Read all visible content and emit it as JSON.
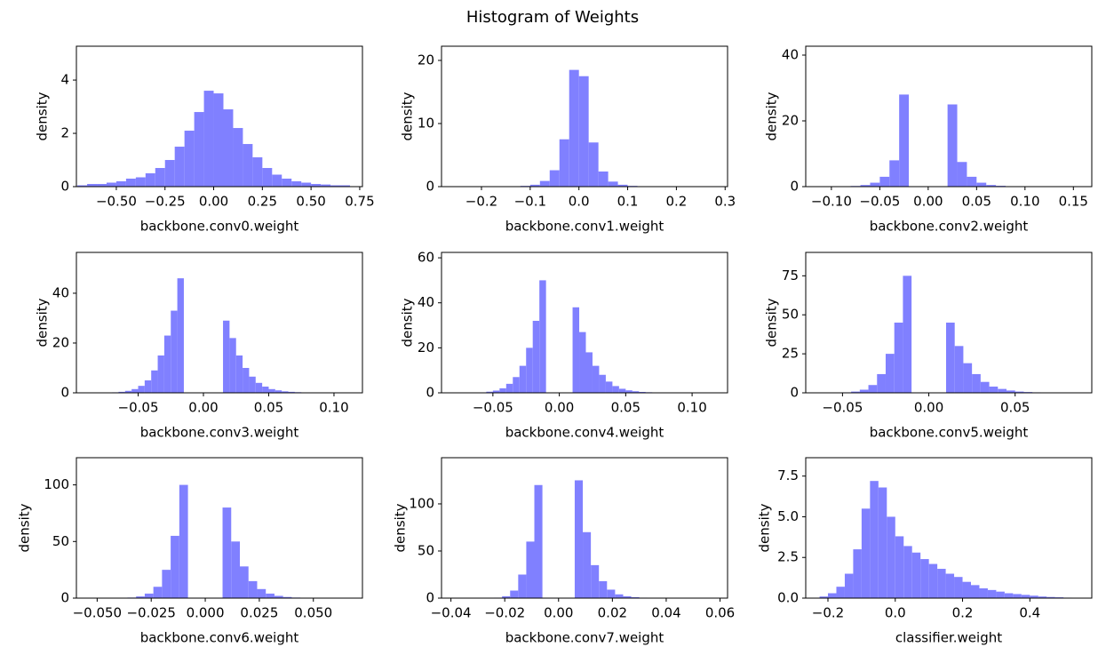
{
  "title": "Histogram of Weights",
  "chart_data": [
    {
      "type": "histogram",
      "xlabel": "backbone.conv0.weight",
      "ylabel": "density",
      "color": "#8080ff",
      "bins": [
        -0.7,
        -0.65,
        -0.6,
        -0.55,
        -0.5,
        -0.45,
        -0.4,
        -0.35,
        -0.3,
        -0.25,
        -0.2,
        -0.15,
        -0.1,
        -0.05,
        0.0,
        0.05,
        0.1,
        0.15,
        0.2,
        0.25,
        0.3,
        0.35,
        0.4,
        0.45,
        0.5,
        0.55,
        0.6,
        0.65,
        0.7
      ],
      "values": [
        0.05,
        0.1,
        0.1,
        0.15,
        0.2,
        0.3,
        0.35,
        0.5,
        0.7,
        1.0,
        1.5,
        2.1,
        2.8,
        3.6,
        3.5,
        2.9,
        2.2,
        1.6,
        1.1,
        0.7,
        0.45,
        0.3,
        0.2,
        0.15,
        0.1,
        0.08,
        0.05,
        0.05
      ],
      "xlim": [
        -0.705,
        0.764
      ],
      "ylim": [
        0,
        5.27
      ],
      "xticks": [
        {
          "value": -0.5,
          "label": "−0.50"
        },
        {
          "value": -0.25,
          "label": "−0.25"
        },
        {
          "value": 0,
          "label": "0.00"
        },
        0.25,
        {
          "value": 0.5,
          "label": "0.50"
        },
        0.75
      ],
      "yticks": [
        0,
        2,
        4
      ]
    },
    {
      "type": "histogram",
      "xlabel": "backbone.conv1.weight",
      "ylabel": "density",
      "color": "#8080ff",
      "bins": [
        -0.26,
        -0.24,
        -0.22,
        -0.2,
        -0.18,
        -0.16,
        -0.14,
        -0.12,
        -0.1,
        -0.08,
        -0.06,
        -0.04,
        -0.02,
        0.0,
        0.02,
        0.04,
        0.06,
        0.08,
        0.1,
        0.12,
        0.14,
        0.16,
        0.18,
        0.2,
        0.22,
        0.24,
        0.26,
        0.28
      ],
      "values": [
        0,
        0,
        0.01,
        0.01,
        0.02,
        0.03,
        0.06,
        0.12,
        0.3,
        0.9,
        2.6,
        7.5,
        18.5,
        17.5,
        7.0,
        2.4,
        0.8,
        0.3,
        0.12,
        0.06,
        0.03,
        0.02,
        0.01,
        0.01,
        0,
        0,
        0
      ],
      "xlim": [
        -0.282,
        0.305
      ],
      "ylim": [
        0,
        22.25
      ],
      "xticks": [
        {
          "value": -0.2,
          "label": "−0.2"
        },
        {
          "value": -0.1,
          "label": "−0.1"
        },
        {
          "value": 0,
          "label": "0.0"
        },
        0.1,
        0.2,
        0.3
      ],
      "yticks": [
        0,
        10,
        20
      ]
    },
    {
      "type": "histogram",
      "xlabel": "backbone.conv2.weight",
      "ylabel": "density",
      "color": "#8080ff",
      "bins": [
        -0.12,
        -0.11,
        -0.1,
        -0.09,
        -0.08,
        -0.07,
        -0.06,
        -0.05,
        -0.04,
        -0.03,
        -0.02,
        -0.01,
        0.0,
        0.01,
        0.02,
        0.03,
        0.04,
        0.05,
        0.06,
        0.07,
        0.08,
        0.09,
        0.1,
        0.11,
        0.12,
        0.13,
        0.14,
        0.15,
        0.16
      ],
      "values": [
        0,
        0,
        0.05,
        0.1,
        0.2,
        0.5,
        1.2,
        3,
        8,
        28,
        0,
        0,
        0,
        0,
        25,
        7.5,
        3,
        1.2,
        0.5,
        0.25,
        0.1,
        0.05,
        0.03,
        0.02,
        0.01,
        0,
        0,
        0
      ],
      "xlim": [
        -0.1265,
        0.169
      ],
      "ylim": [
        0,
        42.7
      ],
      "xticks": [
        {
          "value": -0.1,
          "label": "−0.10"
        },
        {
          "value": -0.05,
          "label": "−0.05"
        },
        {
          "value": 0,
          "label": "0.00"
        },
        0.05,
        {
          "value": 0.1,
          "label": "0.10"
        },
        0.15
      ],
      "yticks": [
        0,
        20,
        40
      ]
    },
    {
      "type": "histogram",
      "xlabel": "backbone.conv3.weight",
      "ylabel": "density",
      "color": "#8080ff",
      "bins": [
        -0.09,
        -0.085,
        -0.08,
        -0.075,
        -0.07,
        -0.065,
        -0.06,
        -0.055,
        -0.05,
        -0.045,
        -0.04,
        -0.035,
        -0.03,
        -0.025,
        -0.02,
        -0.015,
        -0.01,
        -0.005,
        0.0,
        0.005,
        0.01,
        0.015,
        0.02,
        0.025,
        0.03,
        0.035,
        0.04,
        0.045,
        0.05,
        0.055,
        0.06,
        0.065,
        0.07,
        0.075,
        0.08,
        0.085,
        0.09,
        0.095,
        0.1,
        0.105,
        0.11
      ],
      "values": [
        0,
        0.02,
        0.05,
        0.1,
        0.2,
        0.4,
        0.8,
        1.5,
        2.8,
        5,
        9,
        15,
        23,
        33,
        46,
        0,
        0,
        0,
        0,
        0,
        0,
        29,
        22,
        15,
        10,
        6.5,
        4,
        2.5,
        1.5,
        1,
        0.6,
        0.4,
        0.25,
        0.15,
        0.1,
        0.06,
        0.04,
        0.02,
        0.01,
        0
      ],
      "xlim": [
        -0.0973,
        0.1218
      ],
      "ylim": [
        0,
        56.4
      ],
      "xticks": [
        {
          "value": -0.05,
          "label": "−0.05"
        },
        {
          "value": 0,
          "label": "0.00"
        },
        0.05,
        {
          "value": 0.1,
          "label": "0.10"
        }
      ],
      "yticks": [
        0,
        20,
        40
      ]
    },
    {
      "type": "histogram",
      "xlabel": "backbone.conv4.weight",
      "ylabel": "density",
      "color": "#8080ff",
      "bins": [
        -0.08,
        -0.075,
        -0.07,
        -0.065,
        -0.06,
        -0.055,
        -0.05,
        -0.045,
        -0.04,
        -0.035,
        -0.03,
        -0.025,
        -0.02,
        -0.015,
        -0.01,
        -0.005,
        0.0,
        0.005,
        0.01,
        0.015,
        0.02,
        0.025,
        0.03,
        0.035,
        0.04,
        0.045,
        0.05,
        0.055,
        0.06,
        0.065,
        0.07,
        0.075,
        0.08,
        0.085,
        0.09,
        0.095,
        0.1,
        0.105,
        0.11
      ],
      "values": [
        0,
        0.02,
        0.05,
        0.1,
        0.2,
        0.5,
        1,
        2,
        4,
        7,
        12,
        20,
        32,
        50,
        0,
        0,
        0,
        0,
        38,
        27,
        18,
        12,
        8,
        5,
        3,
        1.8,
        1.1,
        0.7,
        0.4,
        0.25,
        0.15,
        0.1,
        0.05,
        0.03,
        0.02,
        0.01,
        0,
        0
      ],
      "xlim": [
        -0.0887,
        0.1267
      ],
      "ylim": [
        0,
        62.4
      ],
      "xticks": [
        {
          "value": -0.05,
          "label": "−0.05"
        },
        {
          "value": 0,
          "label": "0.00"
        },
        0.05,
        {
          "value": 0.1,
          "label": "0.10"
        }
      ],
      "yticks": [
        0,
        20,
        40,
        60
      ]
    },
    {
      "type": "histogram",
      "xlabel": "backbone.conv5.weight",
      "ylabel": "density",
      "color": "#8080ff",
      "bins": [
        -0.065,
        -0.06,
        -0.055,
        -0.05,
        -0.045,
        -0.04,
        -0.035,
        -0.03,
        -0.025,
        -0.02,
        -0.015,
        -0.01,
        -0.005,
        0.0,
        0.005,
        0.01,
        0.015,
        0.02,
        0.025,
        0.03,
        0.035,
        0.04,
        0.045,
        0.05,
        0.055,
        0.06,
        0.065,
        0.07,
        0.075,
        0.08,
        0.085,
        0.09
      ],
      "values": [
        0,
        0.05,
        0.1,
        0.3,
        0.8,
        2,
        5,
        12,
        25,
        45,
        75,
        0,
        0,
        0,
        0,
        45,
        30,
        19,
        12,
        7,
        4,
        2.5,
        1.5,
        0.8,
        0.5,
        0.3,
        0.15,
        0.1,
        0.05,
        0.02,
        0
      ],
      "xlim": [
        -0.0713,
        0.0944
      ],
      "ylim": [
        0,
        90
      ],
      "xticks": [
        {
          "value": -0.05,
          "label": "−0.05"
        },
        {
          "value": 0,
          "label": "0.00"
        },
        0.05
      ],
      "yticks": [
        0,
        25,
        50,
        75
      ]
    },
    {
      "type": "histogram",
      "xlabel": "backbone.conv6.weight",
      "ylabel": "density",
      "color": "#8080ff",
      "bins": [
        -0.048,
        -0.044,
        -0.04,
        -0.036,
        -0.032,
        -0.028,
        -0.024,
        -0.02,
        -0.016,
        -0.012,
        -0.008,
        -0.004,
        0.0,
        0.004,
        0.008,
        0.012,
        0.016,
        0.02,
        0.024,
        0.028,
        0.032,
        0.036,
        0.04,
        0.044,
        0.048,
        0.052,
        0.056,
        0.06
      ],
      "values": [
        0,
        0.05,
        0.2,
        0.5,
        1.5,
        4,
        10,
        25,
        55,
        100,
        0,
        0,
        0,
        0,
        80,
        50,
        28,
        15,
        8,
        4,
        2,
        1,
        0.5,
        0.2,
        0.1,
        0.05,
        0
      ],
      "xlim": [
        -0.0596,
        0.0727
      ],
      "ylim": [
        0,
        124
      ],
      "xticks": [
        {
          "value": -0.05,
          "label": "−0.050"
        },
        {
          "value": -0.025,
          "label": "−0.025"
        },
        {
          "value": 0,
          "label": "0.000"
        },
        0.025,
        {
          "value": 0.05,
          "label": "0.050"
        }
      ],
      "yticks": [
        0,
        50,
        100
      ]
    },
    {
      "type": "histogram",
      "xlabel": "backbone.conv7.weight",
      "ylabel": "density",
      "color": "#8080ff",
      "bins": [
        -0.027,
        -0.024,
        -0.021,
        -0.018,
        -0.015,
        -0.012,
        -0.009,
        -0.006,
        -0.003,
        0.0,
        0.003,
        0.006,
        0.009,
        0.012,
        0.015,
        0.018,
        0.021,
        0.024,
        0.027,
        0.03,
        0.033,
        0.036,
        0.039,
        0.042
      ],
      "values": [
        0.1,
        0.5,
        2,
        8,
        25,
        60,
        120,
        0,
        0,
        0,
        0,
        125,
        70,
        35,
        18,
        9,
        4,
        2,
        1,
        0.5,
        0.2,
        0.1,
        0
      ],
      "xlim": [
        -0.0435,
        0.0628
      ],
      "ylim": [
        0,
        149
      ],
      "xticks": [
        {
          "value": -0.04,
          "label": "−0.04"
        },
        {
          "value": -0.02,
          "label": "−0.02"
        },
        {
          "value": 0,
          "label": "0.00"
        },
        0.02,
        0.04,
        0.06
      ],
      "yticks": [
        0,
        50,
        100
      ]
    },
    {
      "type": "histogram",
      "xlabel": "classifier.weight",
      "ylabel": "density",
      "color": "#8080ff",
      "bins": [
        -0.225,
        -0.2,
        -0.175,
        -0.15,
        -0.125,
        -0.1,
        -0.075,
        -0.05,
        -0.025,
        0,
        0.025,
        0.05,
        0.075,
        0.1,
        0.125,
        0.15,
        0.175,
        0.2,
        0.225,
        0.25,
        0.275,
        0.3,
        0.325,
        0.35,
        0.375,
        0.4,
        0.425,
        0.45,
        0.475,
        0.5,
        0.525,
        0.55
      ],
      "values": [
        0.1,
        0.3,
        0.7,
        1.5,
        3,
        5.5,
        7.2,
        6.8,
        5,
        3.8,
        3.2,
        2.8,
        2.4,
        2.1,
        1.8,
        1.5,
        1.3,
        1.0,
        0.8,
        0.6,
        0.5,
        0.4,
        0.3,
        0.25,
        0.2,
        0.15,
        0.1,
        0.07,
        0.05,
        0.03,
        0.02
      ],
      "xlim": [
        -0.266,
        0.584
      ],
      "ylim": [
        0,
        8.63
      ],
      "xticks": [
        {
          "value": -0.2,
          "label": "−0.2"
        },
        {
          "value": 0,
          "label": "0.0"
        },
        0.2,
        0.4
      ],
      "yticks": [
        {
          "value": 0,
          "label": "0.0"
        },
        2.5,
        {
          "value": 5,
          "label": "5.0"
        },
        7.5
      ]
    }
  ]
}
